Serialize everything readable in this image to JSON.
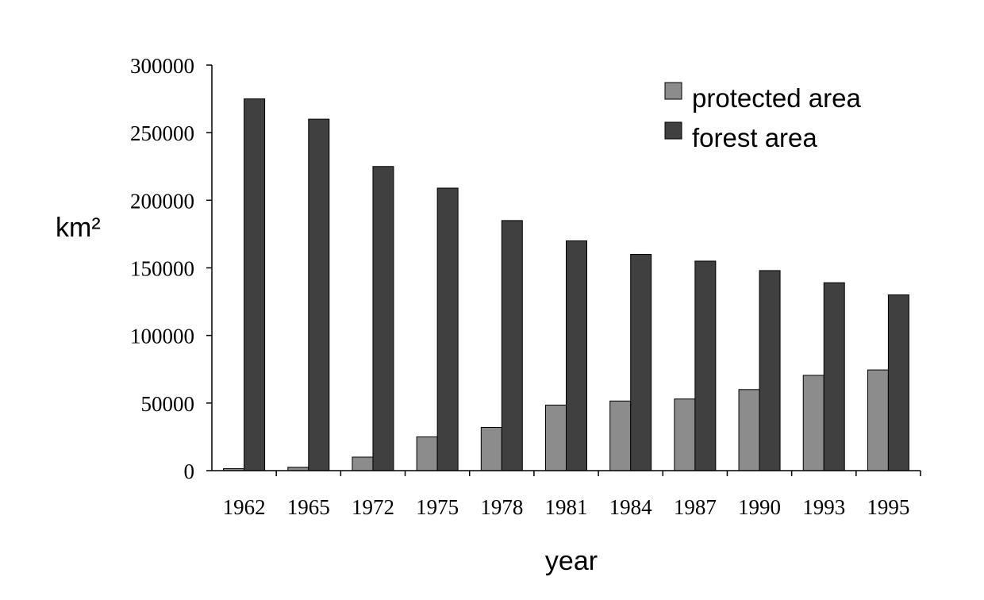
{
  "chart_data": {
    "type": "bar",
    "title": "",
    "xlabel": "year",
    "ylabel": "km²",
    "ylim": [
      0,
      300000
    ],
    "yticks": [
      "0",
      "50000",
      "100000",
      "150000",
      "200000",
      "250000",
      "300000"
    ],
    "categories": [
      "1962",
      "1965",
      "1972",
      "1975",
      "1978",
      "1981",
      "1984",
      "1987",
      "1990",
      "1993",
      "1995"
    ],
    "series": [
      {
        "name": "protected area",
        "color": "#8c8c8c",
        "values": [
          1500,
          2500,
          10000,
          25000,
          32000,
          48500,
          51500,
          53000,
          60000,
          70500,
          74500
        ]
      },
      {
        "name": "forest area",
        "color": "#404040",
        "values": [
          275000,
          260000,
          225000,
          209000,
          185000,
          170000,
          160000,
          155000,
          148000,
          139000,
          130000
        ]
      }
    ],
    "legend_position": "top-right",
    "grid": false
  }
}
